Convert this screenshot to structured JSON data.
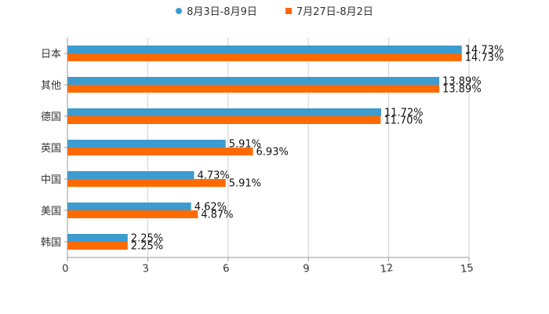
{
  "chart_data": {
    "type": "bar",
    "orientation": "horizontal",
    "categories": [
      "日本",
      "其他",
      "德国",
      "英国",
      "中国",
      "美国",
      "韩国"
    ],
    "series": [
      {
        "name": "8月3日-8月9日",
        "color": "#3d9ccf",
        "marker": "circle",
        "values": [
          14.73,
          13.89,
          11.72,
          5.91,
          4.73,
          4.62,
          2.25
        ],
        "labels": [
          "14.73%",
          "13.89%",
          "11.72%",
          "5.91%",
          "4.73%",
          "4.62%",
          "2.25%"
        ]
      },
      {
        "name": "7月27日-8月2日",
        "color": "#ff6a00",
        "marker": "square",
        "values": [
          14.73,
          13.89,
          11.7,
          6.93,
          5.91,
          4.87,
          2.25
        ],
        "labels": [
          "14.73%",
          "13.89%",
          "11.70%",
          "6.93%",
          "5.91%",
          "4.87%",
          "2.25%"
        ]
      }
    ],
    "xlim": [
      0,
      15
    ],
    "x_ticks": [
      "0",
      "3",
      "6",
      "9",
      "12",
      "15"
    ],
    "grid": true,
    "legend_position": "top-center"
  }
}
